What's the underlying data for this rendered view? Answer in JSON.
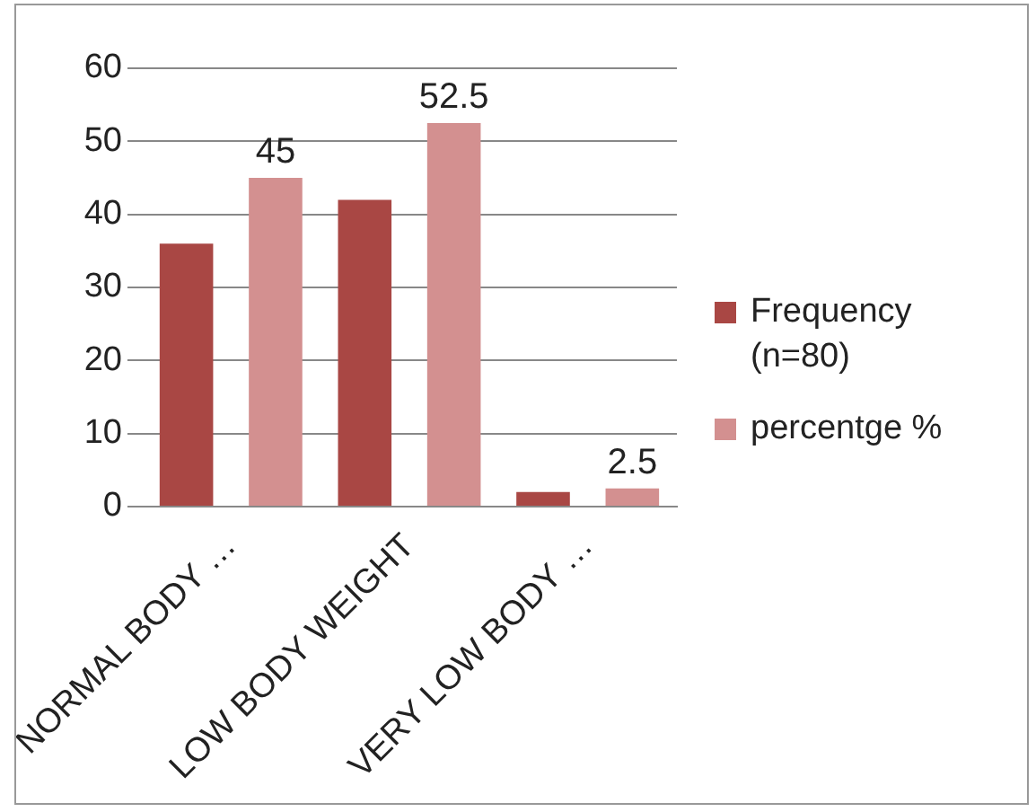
{
  "chart_data": {
    "type": "bar",
    "categories": [
      "NORMAL BODY …",
      "LOW BODY WEIGHT",
      "VERY LOW BODY …"
    ],
    "series": [
      {
        "name": "Frequency (n=80)",
        "color": "#a94744",
        "values": [
          36,
          42,
          2
        ]
      },
      {
        "name": "percentge %",
        "color": "#d39090",
        "values": [
          45,
          52.5,
          2.5
        ],
        "value_labels": [
          "45",
          "52.5",
          "2.5"
        ]
      }
    ],
    "ylim": [
      0,
      60
    ],
    "yticks": [
      0,
      10,
      20,
      30,
      40,
      50,
      60
    ],
    "grid": "y",
    "legend": "right"
  }
}
